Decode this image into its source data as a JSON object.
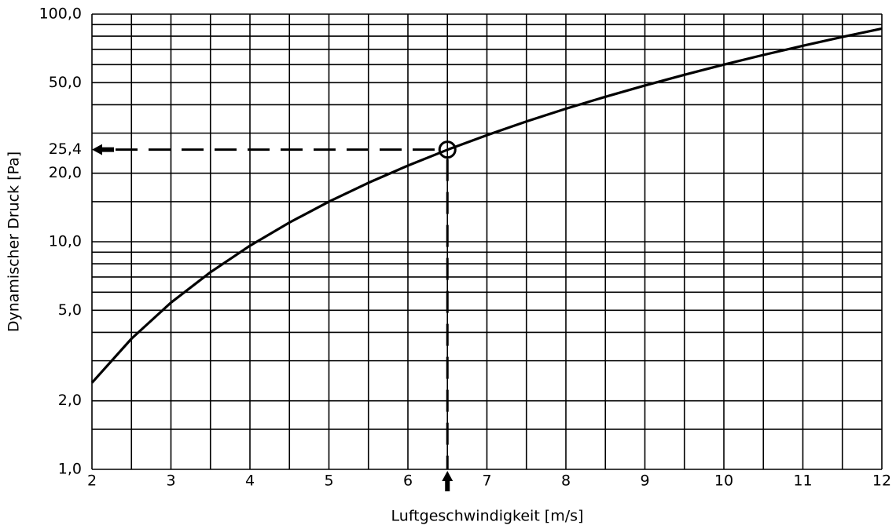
{
  "chart_data": {
    "type": "line",
    "x_label": "Luftgeschwindigkeit [m/s]",
    "y_label": "Dynamischer Druck [Pa]",
    "x": [
      2,
      2.5,
      3,
      3.5,
      4,
      4.5,
      5,
      5.5,
      6,
      6.5,
      7,
      7.5,
      8,
      8.5,
      9,
      9.5,
      10,
      10.5,
      11,
      11.5,
      12
    ],
    "series": [
      {
        "color": "#000000",
        "values": [
          2.4,
          3.75,
          5.4,
          7.35,
          9.6,
          12.15,
          15,
          18.15,
          21.6,
          25.35,
          29.4,
          33.75,
          38.4,
          43.35,
          48.6,
          54.15,
          60,
          66.15,
          72.6,
          79.35,
          86.4
        ]
      }
    ],
    "xlim": [
      2,
      12
    ],
    "xticks": [
      2,
      3,
      4,
      5,
      6,
      7,
      8,
      9,
      10,
      11,
      12
    ],
    "xminor": [
      2.5,
      3.5,
      4.5,
      5.5,
      6.5,
      7.5,
      8.5,
      9.5,
      10.5,
      11.5
    ],
    "ylim": [
      1,
      100
    ],
    "ylog": true,
    "yticks": [
      {
        "value": 1,
        "label": "1,0"
      },
      {
        "value": 2,
        "label": "2,0"
      },
      {
        "value": 5,
        "label": "5,0"
      },
      {
        "value": 10,
        "label": "10,0"
      },
      {
        "value": 20,
        "label": "20,0"
      },
      {
        "value": 25.4,
        "label": "25,4"
      },
      {
        "value": 50,
        "label": "50,0"
      },
      {
        "value": 100,
        "label": "100,0"
      }
    ],
    "yminor": [
      1.5,
      3,
      4,
      6,
      7,
      8,
      9,
      15,
      30,
      40,
      60,
      70,
      80,
      90
    ],
    "grid": true,
    "annotation": {
      "x": 6.5,
      "y": 25.4
    }
  }
}
